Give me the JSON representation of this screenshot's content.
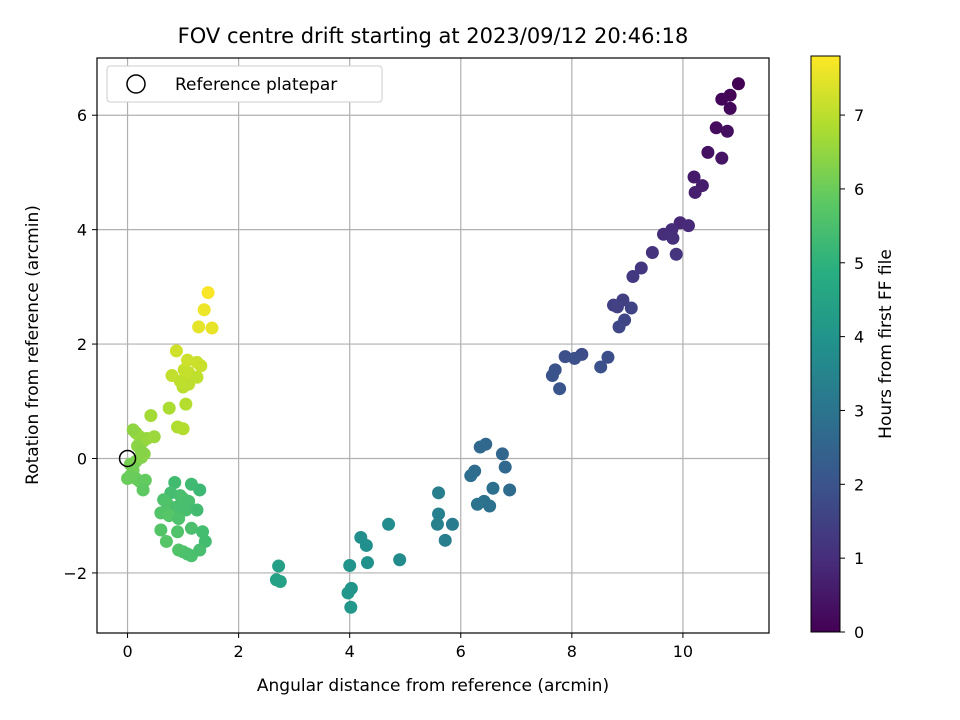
{
  "chart_data": {
    "type": "scatter",
    "title": "FOV centre drift starting at 2023/09/12 20:46:18",
    "xlabel": "Angular distance from reference (arcmin)",
    "ylabel": "Rotation from reference (arcmin)",
    "xlim": [
      -0.55,
      11.55
    ],
    "ylim": [
      -3.05,
      7.0
    ],
    "xticks": [
      0,
      2,
      4,
      6,
      8,
      10
    ],
    "yticks": [
      -2,
      0,
      2,
      4,
      6
    ],
    "xtick_labels": [
      "0",
      "2",
      "4",
      "6",
      "8",
      "10"
    ],
    "ytick_labels": [
      "−2",
      "0",
      "2",
      "4",
      "6"
    ],
    "grid": true,
    "legend": {
      "position": "top-left",
      "label": "Reference platepar"
    },
    "reference_point": {
      "x": 0,
      "y": 0
    },
    "colorbar": {
      "label": "Hours from first FF file",
      "colormap": "viridis",
      "range": [
        0,
        7.8
      ],
      "ticks": [
        0,
        1,
        2,
        3,
        4,
        5,
        6,
        7
      ],
      "tick_labels": [
        "0",
        "1",
        "2",
        "3",
        "4",
        "5",
        "6",
        "7"
      ]
    },
    "points": [
      {
        "x": 11.0,
        "y": 6.55,
        "t": 0.02
      },
      {
        "x": 10.85,
        "y": 6.35,
        "t": 0.08
      },
      {
        "x": 10.7,
        "y": 6.28,
        "t": 0.12
      },
      {
        "x": 10.85,
        "y": 6.12,
        "t": 0.16
      },
      {
        "x": 10.6,
        "y": 5.78,
        "t": 0.25
      },
      {
        "x": 10.8,
        "y": 5.72,
        "t": 0.3
      },
      {
        "x": 10.45,
        "y": 5.35,
        "t": 0.38
      },
      {
        "x": 10.7,
        "y": 5.25,
        "t": 0.42
      },
      {
        "x": 10.2,
        "y": 4.92,
        "t": 0.55
      },
      {
        "x": 10.35,
        "y": 4.77,
        "t": 0.62
      },
      {
        "x": 10.22,
        "y": 4.65,
        "t": 0.68
      },
      {
        "x": 9.95,
        "y": 4.12,
        "t": 0.85
      },
      {
        "x": 10.1,
        "y": 4.07,
        "t": 0.9
      },
      {
        "x": 9.8,
        "y": 4.0,
        "t": 0.95
      },
      {
        "x": 9.65,
        "y": 3.92,
        "t": 1.0
      },
      {
        "x": 9.82,
        "y": 3.85,
        "t": 1.05
      },
      {
        "x": 9.45,
        "y": 3.6,
        "t": 1.12
      },
      {
        "x": 9.88,
        "y": 3.57,
        "t": 1.15
      },
      {
        "x": 9.25,
        "y": 3.33,
        "t": 1.25
      },
      {
        "x": 9.1,
        "y": 3.18,
        "t": 1.3
      },
      {
        "x": 8.92,
        "y": 2.77,
        "t": 1.42
      },
      {
        "x": 8.75,
        "y": 2.68,
        "t": 1.47
      },
      {
        "x": 8.82,
        "y": 2.65,
        "t": 1.5
      },
      {
        "x": 9.07,
        "y": 2.63,
        "t": 1.55
      },
      {
        "x": 8.95,
        "y": 2.42,
        "t": 1.6
      },
      {
        "x": 8.85,
        "y": 2.3,
        "t": 1.65
      },
      {
        "x": 8.18,
        "y": 1.82,
        "t": 1.82
      },
      {
        "x": 7.88,
        "y": 1.78,
        "t": 1.88
      },
      {
        "x": 8.05,
        "y": 1.75,
        "t": 1.9
      },
      {
        "x": 8.65,
        "y": 1.77,
        "t": 1.85
      },
      {
        "x": 7.7,
        "y": 1.55,
        "t": 1.95
      },
      {
        "x": 7.65,
        "y": 1.45,
        "t": 2.0
      },
      {
        "x": 8.52,
        "y": 1.6,
        "t": 1.92
      },
      {
        "x": 7.78,
        "y": 1.22,
        "t": 2.05
      },
      {
        "x": 6.45,
        "y": 0.25,
        "t": 2.6
      },
      {
        "x": 6.35,
        "y": 0.2,
        "t": 2.65
      },
      {
        "x": 6.75,
        "y": 0.08,
        "t": 2.55
      },
      {
        "x": 6.25,
        "y": -0.22,
        "t": 2.75
      },
      {
        "x": 6.8,
        "y": -0.15,
        "t": 2.62
      },
      {
        "x": 6.18,
        "y": -0.3,
        "t": 2.8
      },
      {
        "x": 6.58,
        "y": -0.52,
        "t": 2.85
      },
      {
        "x": 6.88,
        "y": -0.55,
        "t": 2.7
      },
      {
        "x": 6.42,
        "y": -0.75,
        "t": 2.9
      },
      {
        "x": 6.3,
        "y": -0.8,
        "t": 2.95
      },
      {
        "x": 6.52,
        "y": -0.83,
        "t": 2.92
      },
      {
        "x": 5.6,
        "y": -0.6,
        "t": 3.3
      },
      {
        "x": 5.6,
        "y": -0.97,
        "t": 3.35
      },
      {
        "x": 5.58,
        "y": -1.15,
        "t": 3.4
      },
      {
        "x": 5.85,
        "y": -1.15,
        "t": 3.25
      },
      {
        "x": 5.72,
        "y": -1.43,
        "t": 3.3
      },
      {
        "x": 4.7,
        "y": -1.15,
        "t": 3.75
      },
      {
        "x": 4.2,
        "y": -1.38,
        "t": 3.85
      },
      {
        "x": 4.3,
        "y": -1.52,
        "t": 3.88
      },
      {
        "x": 4.9,
        "y": -1.77,
        "t": 3.7
      },
      {
        "x": 4.32,
        "y": -1.82,
        "t": 3.9
      },
      {
        "x": 4.0,
        "y": -1.87,
        "t": 4.0
      },
      {
        "x": 4.03,
        "y": -2.27,
        "t": 4.05
      },
      {
        "x": 3.97,
        "y": -2.35,
        "t": 4.08
      },
      {
        "x": 4.02,
        "y": -2.6,
        "t": 4.1
      },
      {
        "x": 2.72,
        "y": -1.88,
        "t": 4.4
      },
      {
        "x": 2.68,
        "y": -2.12,
        "t": 4.45
      },
      {
        "x": 2.75,
        "y": -2.15,
        "t": 4.48
      },
      {
        "x": 0.85,
        "y": -0.42,
        "t": 5.35
      },
      {
        "x": 1.15,
        "y": -0.45,
        "t": 5.3
      },
      {
        "x": 1.3,
        "y": -0.55,
        "t": 5.25
      },
      {
        "x": 0.78,
        "y": -0.6,
        "t": 5.4
      },
      {
        "x": 0.95,
        "y": -0.65,
        "t": 5.45
      },
      {
        "x": 1.0,
        "y": -0.7,
        "t": 5.5
      },
      {
        "x": 1.1,
        "y": -0.75,
        "t": 5.45
      },
      {
        "x": 0.65,
        "y": -0.72,
        "t": 5.55
      },
      {
        "x": 0.72,
        "y": -0.8,
        "t": 5.6
      },
      {
        "x": 0.88,
        "y": -0.85,
        "t": 5.5
      },
      {
        "x": 1.05,
        "y": -0.9,
        "t": 5.45
      },
      {
        "x": 1.25,
        "y": -0.9,
        "t": 5.35
      },
      {
        "x": 0.6,
        "y": -0.95,
        "t": 5.65
      },
      {
        "x": 0.75,
        "y": -1.0,
        "t": 5.7
      },
      {
        "x": 0.92,
        "y": -1.05,
        "t": 5.55
      },
      {
        "x": 0.6,
        "y": -1.25,
        "t": 5.65
      },
      {
        "x": 0.9,
        "y": -1.28,
        "t": 5.6
      },
      {
        "x": 1.15,
        "y": -1.22,
        "t": 5.5
      },
      {
        "x": 1.35,
        "y": -1.28,
        "t": 5.4
      },
      {
        "x": 0.7,
        "y": -1.45,
        "t": 5.7
      },
      {
        "x": 1.4,
        "y": -1.45,
        "t": 5.38
      },
      {
        "x": 0.92,
        "y": -1.6,
        "t": 5.62
      },
      {
        "x": 1.0,
        "y": -1.63,
        "t": 5.58
      },
      {
        "x": 1.08,
        "y": -1.67,
        "t": 5.55
      },
      {
        "x": 1.15,
        "y": -1.7,
        "t": 5.52
      },
      {
        "x": 1.3,
        "y": -1.6,
        "t": 5.45
      },
      {
        "x": 0.05,
        "y": -0.1,
        "t": 6.15
      },
      {
        "x": 0.15,
        "y": -0.05,
        "t": 6.2
      },
      {
        "x": 0.25,
        "y": 0.02,
        "t": 6.3
      },
      {
        "x": 0.3,
        "y": 0.08,
        "t": 6.4
      },
      {
        "x": 0.1,
        "y": -0.2,
        "t": 6.1
      },
      {
        "x": 0.05,
        "y": -0.3,
        "t": 6.05
      },
      {
        "x": 0.15,
        "y": -0.35,
        "t": 6.0
      },
      {
        "x": 0.22,
        "y": -0.4,
        "t": 5.95
      },
      {
        "x": 0.32,
        "y": -0.38,
        "t": 5.9
      },
      {
        "x": 0.28,
        "y": -0.55,
        "t": 5.85
      },
      {
        "x": 0.0,
        "y": -0.35,
        "t": 6.0
      },
      {
        "x": 0.15,
        "y": 0.45,
        "t": 6.5
      },
      {
        "x": 0.22,
        "y": 0.38,
        "t": 6.55
      },
      {
        "x": 0.1,
        "y": 0.5,
        "t": 6.45
      },
      {
        "x": 0.28,
        "y": 0.3,
        "t": 6.5
      },
      {
        "x": 0.35,
        "y": 0.35,
        "t": 6.55
      },
      {
        "x": 0.48,
        "y": 0.38,
        "t": 6.6
      },
      {
        "x": 0.18,
        "y": 0.22,
        "t": 6.4
      },
      {
        "x": 0.25,
        "y": 0.12,
        "t": 6.35
      },
      {
        "x": 0.42,
        "y": 0.75,
        "t": 6.7
      },
      {
        "x": 0.75,
        "y": 0.88,
        "t": 6.8
      },
      {
        "x": 0.9,
        "y": 0.55,
        "t": 6.85
      },
      {
        "x": 1.0,
        "y": 0.52,
        "t": 6.88
      },
      {
        "x": 1.05,
        "y": 0.95,
        "t": 6.92
      },
      {
        "x": 1.0,
        "y": 1.25,
        "t": 7.0
      },
      {
        "x": 1.1,
        "y": 1.3,
        "t": 7.02
      },
      {
        "x": 0.95,
        "y": 1.35,
        "t": 7.05
      },
      {
        "x": 0.8,
        "y": 1.45,
        "t": 7.08
      },
      {
        "x": 1.1,
        "y": 1.5,
        "t": 7.1
      },
      {
        "x": 1.25,
        "y": 1.42,
        "t": 7.05
      },
      {
        "x": 1.02,
        "y": 1.55,
        "t": 7.12
      },
      {
        "x": 1.08,
        "y": 1.72,
        "t": 7.2
      },
      {
        "x": 1.25,
        "y": 1.68,
        "t": 7.18
      },
      {
        "x": 1.32,
        "y": 1.62,
        "t": 7.15
      },
      {
        "x": 0.88,
        "y": 1.88,
        "t": 7.25
      },
      {
        "x": 1.28,
        "y": 2.3,
        "t": 7.5
      },
      {
        "x": 1.38,
        "y": 2.6,
        "t": 7.6
      },
      {
        "x": 1.52,
        "y": 2.28,
        "t": 7.55
      },
      {
        "x": 1.45,
        "y": 2.9,
        "t": 7.75
      }
    ]
  }
}
